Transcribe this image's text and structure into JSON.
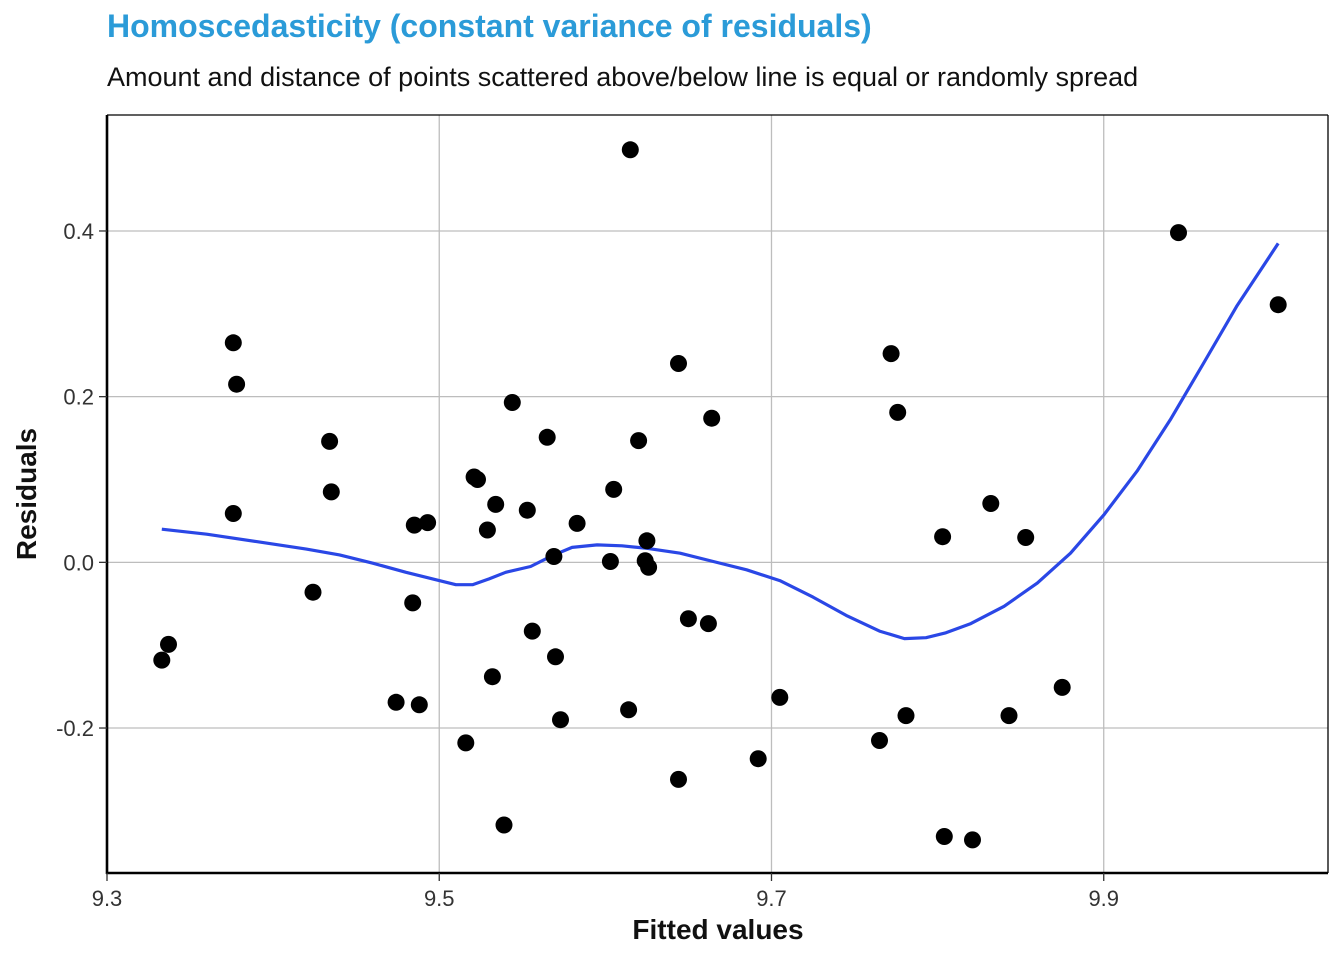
{
  "chart_data": {
    "type": "scatter",
    "title": "Homoscedasticity (constant variance of residuals)",
    "subtitle": "Amount and distance of points scattered above/below line is equal or randomly spread",
    "xlabel": "Fitted values",
    "ylabel": "Residuals",
    "xlim": [
      9.3,
      10.035
    ],
    "ylim": [
      -0.375,
      0.54
    ],
    "xticks": [
      9.3,
      9.5,
      9.7,
      9.9
    ],
    "xtick_labels": [
      "9.3",
      "9.5",
      "9.7",
      "9.9"
    ],
    "yticks": [
      -0.2,
      0.0,
      0.2,
      0.4
    ],
    "ytick_labels": [
      "-0.2",
      "0.0",
      "0.2",
      "0.4"
    ],
    "grid": true,
    "colors": {
      "points": "#000000",
      "smooth": "#2a47e6",
      "grid": "#bdbdbd",
      "title": "#2b9bd8"
    },
    "points": [
      [
        9.333,
        -0.118
      ],
      [
        9.337,
        -0.099
      ],
      [
        9.376,
        0.265
      ],
      [
        9.378,
        0.215
      ],
      [
        9.376,
        0.059
      ],
      [
        9.424,
        -0.036
      ],
      [
        9.434,
        0.146
      ],
      [
        9.435,
        0.085
      ],
      [
        9.474,
        -0.169
      ],
      [
        9.484,
        -0.049
      ],
      [
        9.485,
        0.045
      ],
      [
        9.488,
        -0.172
      ],
      [
        9.493,
        0.048
      ],
      [
        9.516,
        -0.218
      ],
      [
        9.521,
        0.103
      ],
      [
        9.523,
        0.1
      ],
      [
        9.529,
        0.039
      ],
      [
        9.532,
        -0.138
      ],
      [
        9.534,
        0.07
      ],
      [
        9.539,
        -0.317
      ],
      [
        9.544,
        0.193
      ],
      [
        9.553,
        0.063
      ],
      [
        9.556,
        -0.083
      ],
      [
        9.565,
        0.151
      ],
      [
        9.569,
        0.007
      ],
      [
        9.57,
        -0.114
      ],
      [
        9.573,
        -0.19
      ],
      [
        9.583,
        0.047
      ],
      [
        9.603,
        0.001
      ],
      [
        9.605,
        0.088
      ],
      [
        9.614,
        -0.178
      ],
      [
        9.615,
        0.498
      ],
      [
        9.62,
        0.147
      ],
      [
        9.624,
        0.002
      ],
      [
        9.625,
        0.026
      ],
      [
        9.626,
        -0.006
      ],
      [
        9.644,
        0.24
      ],
      [
        9.644,
        -0.262
      ],
      [
        9.65,
        -0.068
      ],
      [
        9.662,
        -0.074
      ],
      [
        9.664,
        0.174
      ],
      [
        9.692,
        -0.237
      ],
      [
        9.705,
        -0.163
      ],
      [
        9.765,
        -0.215
      ],
      [
        9.772,
        0.252
      ],
      [
        9.776,
        0.181
      ],
      [
        9.781,
        -0.185
      ],
      [
        9.803,
        0.031
      ],
      [
        9.804,
        -0.331
      ],
      [
        9.821,
        -0.335
      ],
      [
        9.832,
        0.071
      ],
      [
        9.843,
        -0.185
      ],
      [
        9.853,
        0.03
      ],
      [
        9.875,
        -0.151
      ],
      [
        9.945,
        0.398
      ],
      [
        10.005,
        0.311
      ]
    ],
    "smooth_line": [
      [
        9.333,
        0.04
      ],
      [
        9.36,
        0.034
      ],
      [
        9.39,
        0.025
      ],
      [
        9.42,
        0.016
      ],
      [
        9.44,
        0.009
      ],
      [
        9.46,
        -0.001
      ],
      [
        9.48,
        -0.012
      ],
      [
        9.5,
        -0.022
      ],
      [
        9.51,
        -0.027
      ],
      [
        9.52,
        -0.027
      ],
      [
        9.53,
        -0.02
      ],
      [
        9.54,
        -0.012
      ],
      [
        9.555,
        -0.005
      ],
      [
        9.568,
        0.008
      ],
      [
        9.58,
        0.018
      ],
      [
        9.595,
        0.021
      ],
      [
        9.61,
        0.02
      ],
      [
        9.625,
        0.017
      ],
      [
        9.645,
        0.011
      ],
      [
        9.665,
        0.001
      ],
      [
        9.685,
        -0.009
      ],
      [
        9.705,
        -0.022
      ],
      [
        9.725,
        -0.042
      ],
      [
        9.745,
        -0.064
      ],
      [
        9.765,
        -0.083
      ],
      [
        9.78,
        -0.092
      ],
      [
        9.793,
        -0.091
      ],
      [
        9.805,
        -0.085
      ],
      [
        9.82,
        -0.074
      ],
      [
        9.84,
        -0.053
      ],
      [
        9.86,
        -0.025
      ],
      [
        9.88,
        0.011
      ],
      [
        9.9,
        0.057
      ],
      [
        9.92,
        0.11
      ],
      [
        9.94,
        0.172
      ],
      [
        9.96,
        0.24
      ],
      [
        9.98,
        0.309
      ],
      [
        10.005,
        0.385
      ]
    ]
  }
}
